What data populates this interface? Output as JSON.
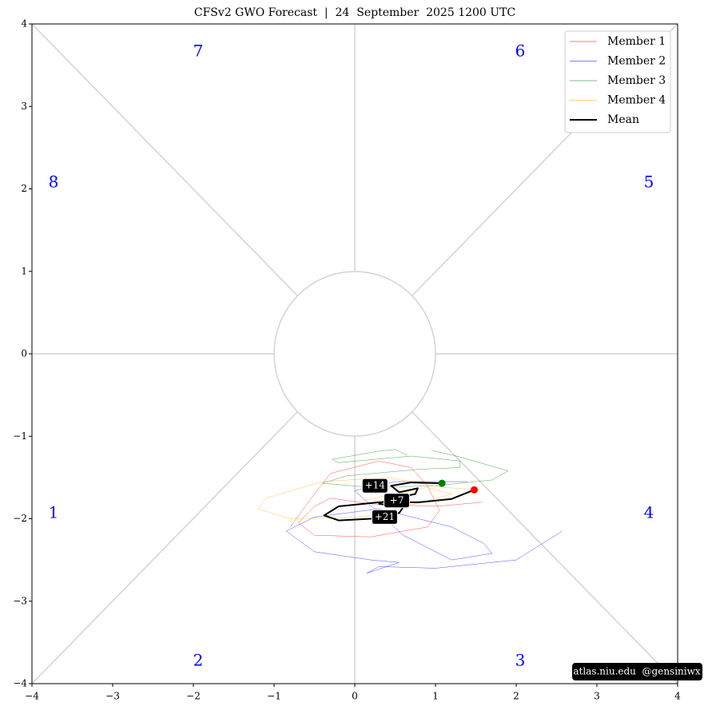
{
  "chart_data": {
    "type": "line",
    "title": "CFSv2 GWO Forecast  |  24  September  2025 1200 UTC",
    "xlim": [
      -4,
      4
    ],
    "ylim": [
      -4,
      4
    ],
    "xticks": [
      {
        "value": -4,
        "label": "−4"
      },
      {
        "value": -3,
        "label": "−3"
      },
      {
        "value": -2,
        "label": "−2"
      },
      {
        "value": -1,
        "label": "−1"
      },
      0,
      1,
      2,
      3,
      4
    ],
    "yticks": [
      {
        "value": -4,
        "label": "−4"
      },
      {
        "value": -3,
        "label": "−3"
      },
      {
        "value": -2,
        "label": "−2"
      },
      {
        "value": -1,
        "label": "−1"
      },
      0,
      1,
      2,
      3,
      4
    ],
    "phase_labels": [
      "1",
      "2",
      "3",
      "4",
      "5",
      "6",
      "7",
      "8"
    ],
    "series": [
      {
        "name": "Member 1",
        "color": "#ff0000",
        "width": 0.5,
        "x": [
          1.58,
          1.0,
          0.2,
          -0.3,
          -0.5,
          -0.7,
          -0.5,
          0.2,
          0.9,
          1.05,
          0.9,
          0.7,
          0.3,
          -0.3,
          -0.5,
          -0.8
        ],
        "values": [
          -1.8,
          -1.85,
          -1.82,
          -1.75,
          -1.85,
          -2.05,
          -2.2,
          -2.22,
          -2.1,
          -1.9,
          -1.6,
          -1.38,
          -1.3,
          -1.45,
          -1.7,
          -2.1
        ]
      },
      {
        "name": "Member 2",
        "color": "#0000ff",
        "width": 0.5,
        "x": [
          2.57,
          2.0,
          1.0,
          0.3,
          0.15,
          0.55,
          0.2,
          -0.5,
          -0.85,
          -0.5,
          0.3,
          1.2,
          1.6,
          1.7,
          1.2,
          0.6,
          0.0,
          0.5,
          1.4
        ],
        "values": [
          -2.15,
          -2.5,
          -2.6,
          -2.58,
          -2.66,
          -2.53,
          -2.5,
          -2.4,
          -2.15,
          -1.98,
          -1.88,
          -2.1,
          -2.3,
          -2.42,
          -2.5,
          -2.2,
          -1.66,
          -1.55,
          -1.55
        ]
      },
      {
        "name": "Member 3",
        "color": "#008000",
        "width": 0.5,
        "x": [
          0.95,
          1.3,
          1.9,
          1.7,
          1.0,
          0.2,
          -0.4,
          -0.1,
          0.8,
          1.3,
          1.3,
          0.7,
          -0.2,
          -0.28,
          0.3,
          0.5,
          0.65
        ],
        "values": [
          -1.17,
          -1.25,
          -1.42,
          -1.53,
          -1.6,
          -1.62,
          -1.57,
          -1.48,
          -1.4,
          -1.38,
          -1.3,
          -1.24,
          -1.32,
          -1.28,
          -1.18,
          -1.16,
          -1.23
        ]
      },
      {
        "name": "Member 4",
        "color": "#ffa500",
        "width": 0.5,
        "x": [
          1.55,
          1.1,
          0.4,
          -0.4,
          -1.1,
          -1.2,
          -0.8,
          0.1,
          0.9,
          1.2,
          0.9,
          0.5,
          0.1
        ],
        "values": [
          -1.65,
          -1.62,
          -1.5,
          -1.55,
          -1.75,
          -1.88,
          -2.0,
          -1.98,
          -1.78,
          -1.7,
          -1.62,
          -1.7,
          -1.78
        ]
      },
      {
        "name": "Mean",
        "color": "#000000",
        "width": 2,
        "x": [
          1.08,
          0.7,
          0.45,
          0.55,
          0.78,
          0.75,
          0.4,
          0.3,
          0.6,
          0.55,
          0.2,
          -0.2,
          -0.38,
          -0.2,
          0.3,
          0.8,
          1.2,
          1.48
        ],
        "values": [
          -1.57,
          -1.56,
          -1.6,
          -1.68,
          -1.63,
          -1.7,
          -1.77,
          -1.82,
          -1.86,
          -1.93,
          -2.0,
          -2.02,
          -1.96,
          -1.85,
          -1.8,
          -1.8,
          -1.76,
          -1.65
        ]
      }
    ],
    "markers": [
      {
        "x": 1.08,
        "y": -1.57,
        "color": "#008000"
      },
      {
        "x": 1.48,
        "y": -1.65,
        "color": "#ff0000"
      }
    ],
    "annotations": [
      {
        "text": "+7",
        "x": 0.52,
        "y": -1.78
      },
      {
        "text": "+14",
        "x": 0.25,
        "y": -1.6
      },
      {
        "text": "+21",
        "x": 0.37,
        "y": -1.98
      }
    ],
    "watermark": "atlas.niu.edu  @gensiniwx",
    "legend": "upper right"
  }
}
